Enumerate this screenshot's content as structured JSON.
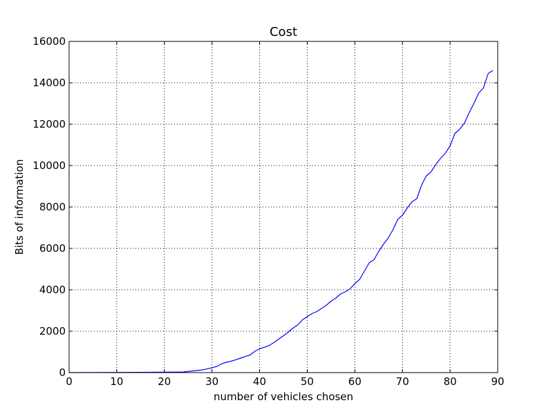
{
  "chart_data": {
    "type": "line",
    "title": "Cost",
    "xlabel": "number of vehicles chosen",
    "ylabel": "Bits of information",
    "xlim": [
      0,
      90
    ],
    "ylim": [
      0,
      16000
    ],
    "xticks": [
      0,
      10,
      20,
      30,
      40,
      50,
      60,
      70,
      80,
      90
    ],
    "yticks": [
      0,
      2000,
      4000,
      6000,
      8000,
      10000,
      12000,
      14000,
      16000
    ],
    "grid": true,
    "series": [
      {
        "name": "cost",
        "color": "#0000ff",
        "x": [
          0,
          5,
          10,
          15,
          20,
          24,
          26,
          28,
          30,
          31,
          32,
          33,
          34,
          35,
          36,
          37,
          38,
          39,
          40,
          41,
          42,
          43,
          44,
          45,
          46,
          47,
          48,
          49,
          50,
          51,
          52,
          53,
          54,
          55,
          56,
          57,
          58,
          59,
          60,
          61,
          62,
          63,
          64,
          65,
          66,
          67,
          68,
          69,
          70,
          71,
          72,
          73,
          74,
          75,
          76,
          77,
          78,
          79,
          80,
          81,
          82,
          83,
          84,
          85,
          86,
          87,
          88,
          89
        ],
        "y": [
          0,
          5,
          10,
          15,
          20,
          30,
          80,
          130,
          230,
          300,
          420,
          500,
          550,
          620,
          700,
          780,
          850,
          1030,
          1150,
          1220,
          1310,
          1450,
          1620,
          1780,
          1950,
          2150,
          2300,
          2550,
          2700,
          2850,
          2950,
          3100,
          3250,
          3450,
          3600,
          3800,
          3900,
          4050,
          4300,
          4500,
          4900,
          5300,
          5450,
          5850,
          6200,
          6500,
          6900,
          7400,
          7600,
          7950,
          8250,
          8400,
          9050,
          9500,
          9700,
          10050,
          10350,
          10600,
          10950,
          11550,
          11750,
          12050,
          12550,
          13000,
          13500,
          13750,
          14450,
          14600
        ]
      }
    ]
  }
}
